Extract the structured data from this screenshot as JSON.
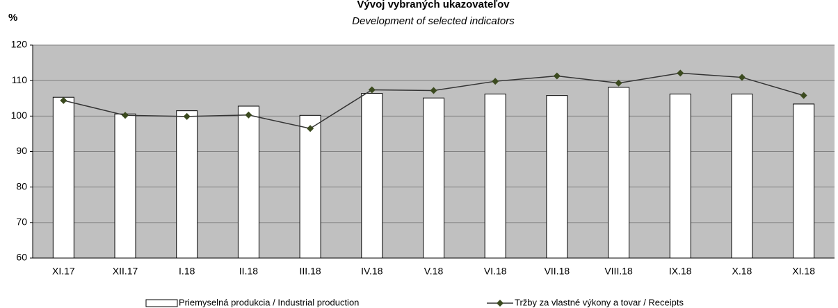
{
  "chart_data": {
    "type": "bar",
    "title": "Vývoj vybraných ukazovateľov",
    "subtitle": "Development of selected indicators",
    "y_label": "%",
    "categories": [
      "XI.17",
      "XII.17",
      "I.18",
      "II.18",
      "III.18",
      "IV.18",
      "V.18",
      "VI.18",
      "VII.18",
      "VIII.18",
      "IX.18",
      "X.18",
      "XI.18"
    ],
    "series": [
      {
        "name": "Priemyselná produkcia / Industrial production",
        "type": "bar",
        "color": "#ffffff",
        "values": [
          105.3,
          100.6,
          101.5,
          102.8,
          100.2,
          106.4,
          105.1,
          106.2,
          105.8,
          108.1,
          106.2,
          106.2,
          103.4
        ]
      },
      {
        "name": "Tržby za vlastné výkony a tovar / Receipts",
        "type": "line",
        "color": "#333333",
        "marker_color": "#3b4a1f",
        "values": [
          104.4,
          100.2,
          99.9,
          100.3,
          96.5,
          107.4,
          107.2,
          109.8,
          111.3,
          109.3,
          112.1,
          110.9,
          105.8
        ]
      }
    ],
    "ylim": [
      60,
      120
    ],
    "yticks": [
      60,
      70,
      80,
      90,
      100,
      110,
      120
    ],
    "grid": true,
    "plot_background": "#c0c0c0",
    "legend": "bottom"
  }
}
